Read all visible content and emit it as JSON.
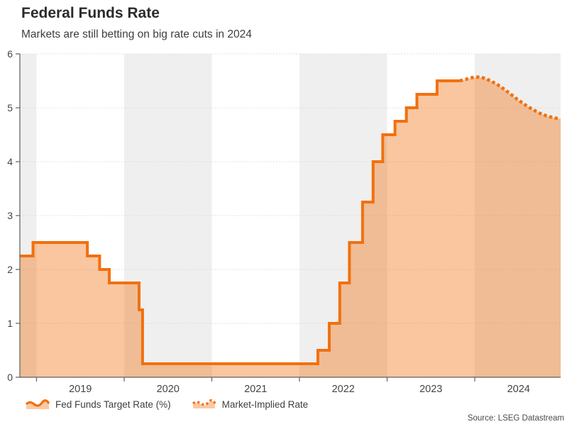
{
  "header": {
    "title": "Federal Funds Rate",
    "subtitle": "Markets are still betting on big rate cuts in 2024"
  },
  "legend": [
    {
      "label": "Fed Funds Target Rate (%)",
      "style": "solid"
    },
    {
      "label": "Market-Implied Rate",
      "style": "dotted"
    }
  ],
  "source": "Source: LSEG Datastream",
  "colors": {
    "line": "#f1700f",
    "fill": "rgba(241,112,15,0.40)",
    "band": "#efefef",
    "grid": "#d6d6d6",
    "axis": "#5f5f5f",
    "tick_text": "#444444"
  },
  "chart_data": {
    "type": "area",
    "title": "Federal Funds Rate",
    "subtitle": "Markets are still betting on big rate cuts in 2024",
    "xlabel": "",
    "ylabel": "",
    "ylim": [
      0,
      6
    ],
    "yticks": [
      0,
      1,
      2,
      3,
      4,
      5,
      6
    ],
    "xlim": [
      2018.81,
      2024.98
    ],
    "xticks": [
      2019,
      2020,
      2021,
      2022,
      2023,
      2024
    ],
    "xtick_labels": [
      "2019",
      "2020",
      "2021",
      "2022",
      "2023",
      "2024"
    ],
    "xtick_labels_centered_on_year": true,
    "grid": "horizontal-dotted",
    "legend_position": "bottom",
    "shaded_bands": [
      [
        2018.81,
        2019
      ],
      [
        2020,
        2021
      ],
      [
        2022,
        2023
      ],
      [
        2024,
        2024.98
      ]
    ],
    "series": [
      {
        "name": "Fed Funds Target Rate (%)",
        "type": "step",
        "line": "solid",
        "points": [
          [
            2018.81,
            2.25
          ],
          [
            2018.96,
            2.5
          ],
          [
            2019.58,
            2.25
          ],
          [
            2019.72,
            2.0
          ],
          [
            2019.83,
            1.75
          ],
          [
            2020.17,
            1.25
          ],
          [
            2020.21,
            0.25
          ],
          [
            2022.21,
            0.5
          ],
          [
            2022.34,
            1.0
          ],
          [
            2022.46,
            1.75
          ],
          [
            2022.57,
            2.5
          ],
          [
            2022.72,
            3.25
          ],
          [
            2022.84,
            4.0
          ],
          [
            2022.95,
            4.5
          ],
          [
            2023.09,
            4.75
          ],
          [
            2023.22,
            5.0
          ],
          [
            2023.34,
            5.25
          ],
          [
            2023.57,
            5.5
          ],
          [
            2023.83,
            5.5
          ]
        ]
      },
      {
        "name": "Market-Implied Rate",
        "type": "line",
        "line": "dotted",
        "points": [
          [
            2023.83,
            5.5
          ],
          [
            2023.9,
            5.53
          ],
          [
            2023.97,
            5.56
          ],
          [
            2024.04,
            5.57
          ],
          [
            2024.11,
            5.55
          ],
          [
            2024.18,
            5.5
          ],
          [
            2024.26,
            5.43
          ],
          [
            2024.34,
            5.34
          ],
          [
            2024.42,
            5.24
          ],
          [
            2024.5,
            5.14
          ],
          [
            2024.58,
            5.05
          ],
          [
            2024.66,
            4.97
          ],
          [
            2024.74,
            4.9
          ],
          [
            2024.82,
            4.85
          ],
          [
            2024.89,
            4.82
          ],
          [
            2024.95,
            4.8
          ]
        ]
      }
    ]
  }
}
